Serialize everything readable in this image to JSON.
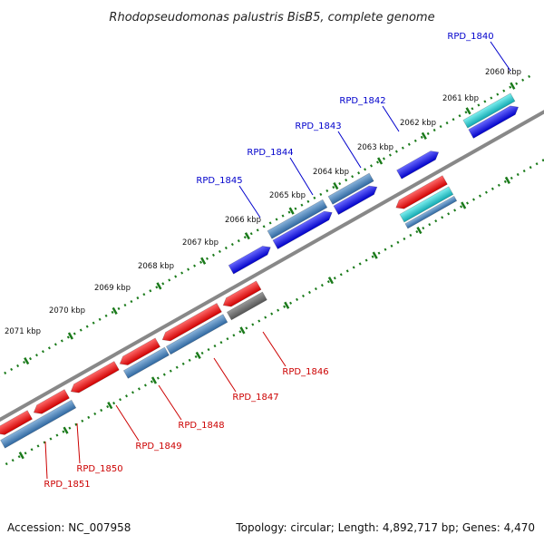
{
  "title": "Rhodopseudomonas palustris BisB5, complete genome",
  "footer": {
    "accession": "Accession: NC_007958",
    "summary": "Topology: circular; Length: 4,892,717 bp; Genes: 4,470"
  },
  "kbp_labels": [
    "2060 kbp",
    "2061 kbp",
    "2062 kbp",
    "2063 kbp",
    "2064 kbp",
    "2065 kbp",
    "2066 kbp",
    "2067 kbp",
    "2068 kbp",
    "2069 kbp",
    "2070 kbp",
    "2071 kbp"
  ],
  "upper_genes": [
    "RPD_1840",
    "RPD_1842",
    "RPD_1843",
    "RPD_1844",
    "RPD_1845"
  ],
  "lower_genes": [
    "RPD_1846",
    "RPD_1847",
    "RPD_1848",
    "RPD_1849",
    "RPD_1850",
    "RPD_1851"
  ],
  "colors": {
    "forward_gene": "#0000ee",
    "reverse_gene": "#ee0000",
    "cds_blue": "#4a82b8",
    "cds_teal": "#20c0c0",
    "pseudo": "#666666",
    "backbone": "#888888",
    "ruler": "#1a7a1a"
  }
}
